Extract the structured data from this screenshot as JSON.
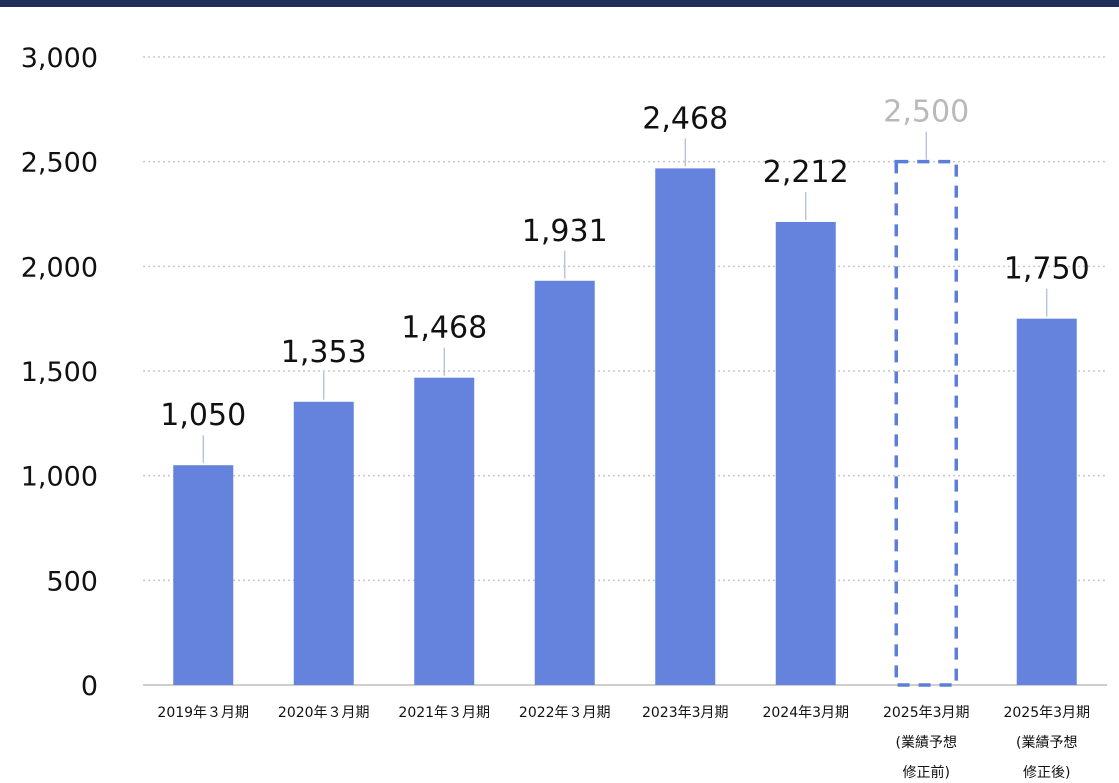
{
  "colors": {
    "bar": "#6583dc",
    "forecast_outline": "#5b7ed8",
    "grid": "#c9c9c9",
    "forecast_label": "#b9b9b9",
    "header": "#1f2f5a"
  },
  "chart_data": {
    "type": "bar",
    "ylim": [
      0,
      3000
    ],
    "yticks": [
      "0",
      "500",
      "1,000",
      "1,500",
      "2,000",
      "2,500",
      "3,000"
    ],
    "ytick_values": [
      0,
      500,
      1000,
      1500,
      2000,
      2500,
      3000
    ],
    "grid": true,
    "categories": [
      [
        "2019年３月期"
      ],
      [
        "2020年３月期"
      ],
      [
        "2021年３月期"
      ],
      [
        "2022年３月期"
      ],
      [
        "2023年3月期"
      ],
      [
        "2024年3月期"
      ],
      [
        "2025年3月期",
        "(業績予想",
        "修正前)"
      ],
      [
        "2025年3月期",
        "(業績予想",
        "修正後)"
      ]
    ],
    "values": [
      1050,
      1353,
      1468,
      1931,
      2468,
      2212,
      2500,
      1750
    ],
    "value_labels": [
      "1,050",
      "1,353",
      "1,468",
      "1,931",
      "2,468",
      "2,212",
      "2,500",
      "1,750"
    ],
    "styles": [
      "solid",
      "solid",
      "solid",
      "solid",
      "solid",
      "solid",
      "dashed-outline",
      "solid"
    ]
  }
}
